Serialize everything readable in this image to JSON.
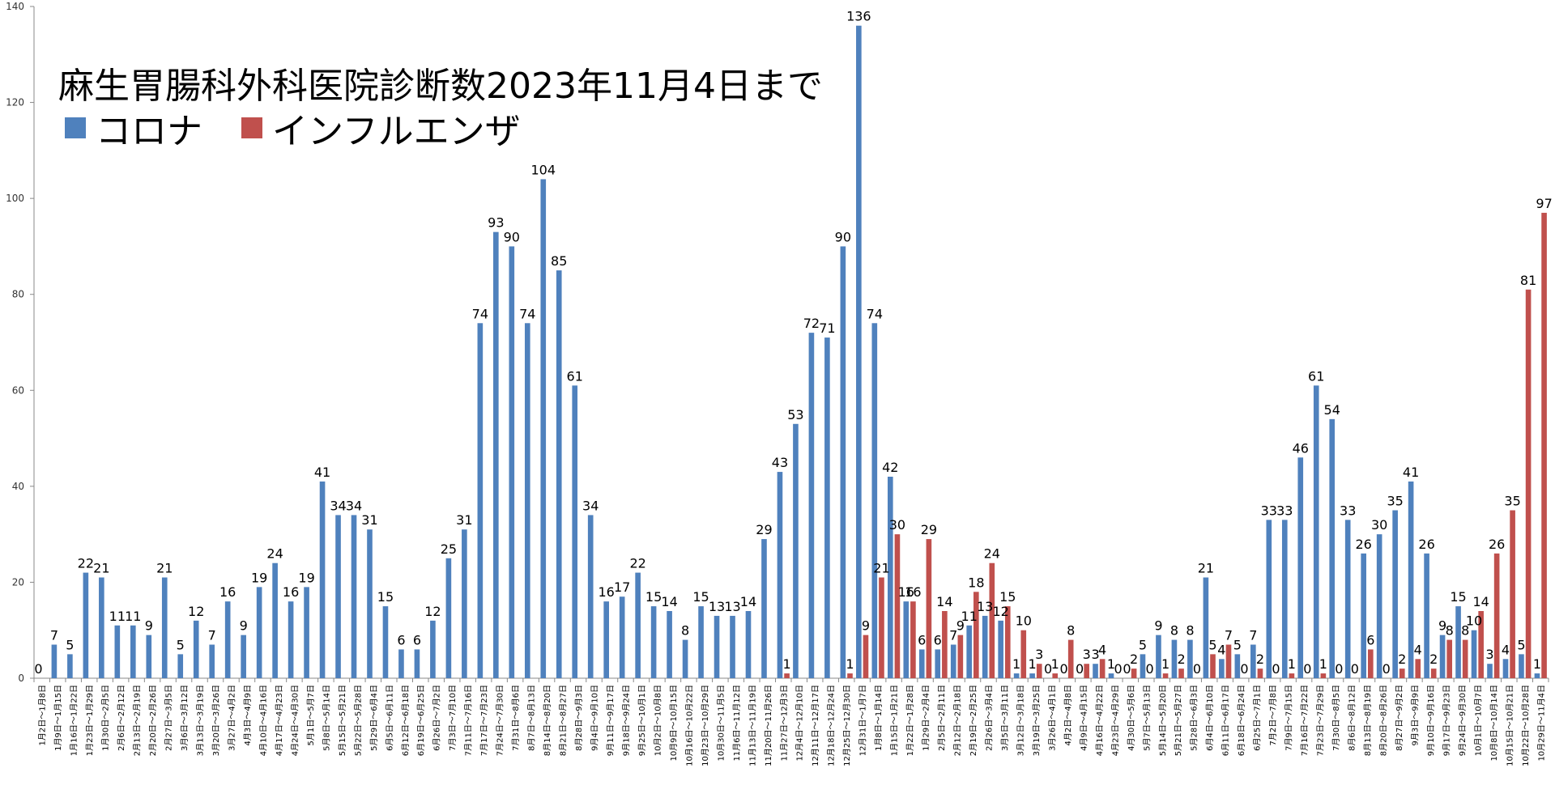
{
  "chart_data": {
    "type": "bar",
    "title": "麻生胃腸科外科医院診断数2023年11月4日まで",
    "ylim": [
      0,
      140
    ],
    "yticks": [
      0,
      20,
      40,
      60,
      80,
      100,
      120,
      140
    ],
    "grid": false,
    "legend_placement": "top-left",
    "categories": [
      "1月2日〜1月8日",
      "1月9日〜1月15日",
      "1月16日〜1月22日",
      "1月23日〜1月29日",
      "1月30日〜2月5日",
      "2月6日〜2月12日",
      "2月13日〜2月19日",
      "2月20日〜2月26日",
      "2月27日〜3月5日",
      "3月6日〜3月12日",
      "3月13日〜3月19日",
      "3月20日〜3月26日",
      "3月27日〜4月2日",
      "4月3日〜4月9日",
      "4月10日〜4月16日",
      "4月17日〜4月23日",
      "4月24日〜4月30日",
      "5月1日〜5月7日",
      "5月8日〜5月14日",
      "5月15日〜5月21日",
      "5月22日〜5月28日",
      "5月29日〜6月4日",
      "6月5日〜6月11日",
      "6月12日〜6月18日",
      "6月19日〜6月25日",
      "6月26日〜7月2日",
      "7月3日〜7月10日",
      "7月11日〜7月16日",
      "7月17日〜7月23日",
      "7月24日〜7月30日",
      "7月31日〜8月6日",
      "8月7日〜8月13日",
      "8月14日〜8月20日",
      "8月21日〜8月27日",
      "8月28日〜9月3日",
      "9月4日〜9月10日",
      "9月11日〜9月17日",
      "9月18日〜9月24日",
      "9月25日〜10月1日",
      "10月2日〜10月8日",
      "10月9日〜10月15日",
      "10月16日〜10月22日",
      "10月23日〜10月29日",
      "10月30日〜11月5日",
      "11月6日〜11月12日",
      "11月13日〜11月19日",
      "11月20日〜11月26日",
      "11月27日〜12月3日",
      "12月4日〜12月10日",
      "12月11日〜12月17日",
      "12月18日〜12月24日",
      "12月25日〜12月30日",
      "12月31日〜1月7日",
      "1月8日〜1月14日",
      "1月15日〜1月21日",
      "1月22日〜1月28日",
      "1月29日〜2月4日",
      "2月5日〜2月11日",
      "2月12日〜2月18日",
      "2月19日〜2月25日",
      "2月26日〜3月4日",
      "3月5日〜3月11日",
      "3月12日〜3月18日",
      "3月19日〜3月25日",
      "3月26日〜4月1日",
      "4月2日〜4月8日",
      "4月9日〜4月15日",
      "4月16日〜4月22日",
      "4月23日〜4月29日",
      "4月30日〜5月6日",
      "5月7日〜5月13日",
      "5月14日〜5月20日",
      "5月21日〜5月27日",
      "5月28日〜6月3日",
      "6月4日〜6月10日",
      "6月11日〜6月17日",
      "6月18日〜6月24日",
      "6月25日〜7月1日",
      "7月2日〜7月8日",
      "7月9日〜7月15日",
      "7月16日〜7月22日",
      "7月23日〜7月29日",
      "7月30日〜8月5日",
      "8月6日〜8月12日",
      "8月13日〜8月19日",
      "8月20日〜8月26日",
      "8月27日〜9月2日",
      "9月3日〜9月9日",
      "9月10日〜9月16日",
      "9月17日〜9月23日",
      "9月24日〜9月30日",
      "10月1日〜10月7日",
      "10月8日〜10月14日",
      "10月15日〜10月21日",
      "10月22日〜10月28日",
      "10月29日〜11月4日"
    ],
    "series": [
      {
        "name": "コロナ",
        "color": "#4F81BD",
        "values": [
          0,
          7,
          5,
          22,
          21,
          11,
          11,
          9,
          21,
          5,
          12,
          7,
          16,
          9,
          19,
          24,
          16,
          19,
          41,
          34,
          34,
          31,
          15,
          6,
          6,
          12,
          25,
          31,
          74,
          93,
          90,
          74,
          104,
          85,
          61,
          34,
          16,
          17,
          22,
          15,
          14,
          8,
          15,
          13,
          13,
          14,
          29,
          43,
          53,
          72,
          71,
          90,
          136,
          74,
          42,
          16,
          6,
          6,
          7,
          11,
          13,
          12,
          1,
          1,
          0,
          0,
          0,
          3,
          1,
          0,
          5,
          9,
          8,
          8,
          21,
          4,
          5,
          7,
          33,
          33,
          46,
          61,
          54,
          33,
          26,
          30,
          35,
          41,
          26,
          9,
          15,
          10,
          3,
          4,
          5,
          1
        ]
      },
      {
        "name": "インフルエンザ",
        "color": "#C0504D",
        "values": [
          null,
          null,
          null,
          null,
          null,
          null,
          null,
          null,
          null,
          null,
          null,
          null,
          null,
          null,
          null,
          null,
          null,
          null,
          null,
          null,
          null,
          null,
          null,
          null,
          null,
          null,
          null,
          null,
          null,
          null,
          null,
          null,
          null,
          null,
          null,
          null,
          null,
          null,
          null,
          null,
          null,
          null,
          null,
          null,
          null,
          null,
          null,
          1,
          null,
          null,
          null,
          1,
          9,
          21,
          30,
          16,
          29,
          14,
          9,
          18,
          24,
          15,
          10,
          3,
          1,
          8,
          3,
          4,
          0,
          2,
          0,
          1,
          2,
          0,
          5,
          7,
          0,
          2,
          0,
          1,
          0,
          1,
          0,
          0,
          6,
          0,
          2,
          4,
          2,
          8,
          8,
          14,
          26,
          35,
          81,
          97
        ]
      }
    ]
  }
}
